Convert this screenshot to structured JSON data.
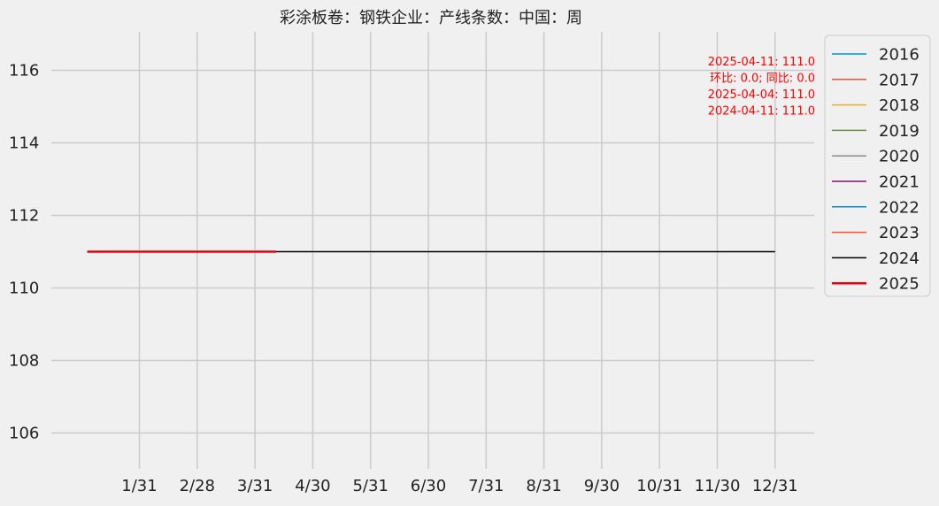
{
  "chart_data": {
    "type": "line",
    "title": "彩涂板卷：钢铁企业：产线条数：中国：周",
    "xlabel": "",
    "ylabel": "",
    "x_ticks": [
      "1/31",
      "2/28",
      "3/31",
      "4/30",
      "5/31",
      "6/30",
      "7/31",
      "8/31",
      "9/30",
      "10/31",
      "11/30",
      "12/31"
    ],
    "y_ticks": [
      "106",
      "108",
      "110",
      "112",
      "114",
      "116"
    ],
    "ylim": [
      105,
      117
    ],
    "grid": true,
    "legend_position": "outside-right",
    "series": [
      {
        "name": "2016",
        "color": "#008fd5",
        "values": []
      },
      {
        "name": "2017",
        "color": "#fc4f30",
        "values": []
      },
      {
        "name": "2018",
        "color": "#e5ae38",
        "values": []
      },
      {
        "name": "2019",
        "color": "#6d904f",
        "values": []
      },
      {
        "name": "2020",
        "color": "#8b8b8b",
        "values": []
      },
      {
        "name": "2021",
        "color": "#810f7c",
        "values": []
      },
      {
        "name": "2022",
        "color": "#008fd5",
        "values": []
      },
      {
        "name": "2023",
        "color": "#fc4f30",
        "values": []
      },
      {
        "name": "2024",
        "color": "#000000",
        "values": [
          {
            "x": "01-05",
            "y": 111.0
          },
          {
            "x": "12-31",
            "y": 111.0
          }
        ]
      },
      {
        "name": "2025",
        "color": "#e8000b",
        "values": [
          {
            "x": "01-03",
            "y": 111.0
          },
          {
            "x": "04-11",
            "y": 111.0
          }
        ]
      }
    ],
    "annotation": {
      "color": "#ff0000",
      "lines": [
        "2025-04-11: 111.0",
        "环比: 0.0; 同比: 0.0",
        "2025-04-04: 111.0",
        "2024-04-11: 111.0"
      ]
    }
  }
}
